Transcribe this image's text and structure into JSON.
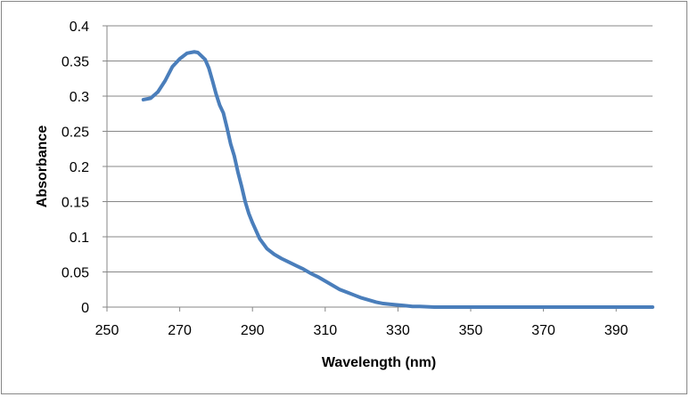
{
  "chart_data": {
    "type": "line",
    "title": "",
    "xlabel": "Wavelength (nm)",
    "ylabel": "Absorbance",
    "xlim": [
      250,
      400
    ],
    "ylim": [
      0,
      0.4
    ],
    "x_ticks": [
      250,
      270,
      290,
      310,
      330,
      350,
      370,
      390
    ],
    "y_ticks": [
      0,
      0.05,
      0.1,
      0.15,
      0.2,
      0.25,
      0.3,
      0.35,
      0.4
    ],
    "x_tick_labels": [
      "250",
      "270",
      "290",
      "310",
      "330",
      "350",
      "370",
      "390"
    ],
    "y_tick_labels": [
      "0",
      "0.05",
      "0.1",
      "0.15",
      "0.2",
      "0.25",
      "0.3",
      "0.35",
      "0.4"
    ],
    "grid": "horizontal",
    "legend": "none",
    "series_color": "#4a7ebb",
    "series": [
      {
        "x": [
          260,
          262,
          264,
          266,
          268,
          270,
          272,
          274,
          275,
          276,
          277,
          278,
          279,
          280,
          281,
          282,
          283,
          284,
          285,
          286,
          287,
          288,
          289,
          290,
          292,
          294,
          296,
          298,
          300,
          302,
          304,
          306,
          308,
          310,
          312,
          314,
          316,
          318,
          320,
          322,
          324,
          326,
          328,
          330,
          332,
          334,
          336,
          338,
          340,
          345,
          350,
          360,
          370,
          380,
          390,
          400
        ],
        "y": [
          0.295,
          0.297,
          0.306,
          0.322,
          0.342,
          0.353,
          0.361,
          0.363,
          0.362,
          0.357,
          0.352,
          0.34,
          0.322,
          0.303,
          0.287,
          0.276,
          0.255,
          0.232,
          0.215,
          0.192,
          0.172,
          0.15,
          0.133,
          0.12,
          0.097,
          0.083,
          0.075,
          0.069,
          0.064,
          0.059,
          0.054,
          0.048,
          0.043,
          0.037,
          0.031,
          0.025,
          0.021,
          0.017,
          0.013,
          0.01,
          0.007,
          0.005,
          0.004,
          0.003,
          0.002,
          0.001,
          0.001,
          0.0005,
          0.0,
          0.0,
          0.0,
          0.0,
          0.0,
          0.0,
          0.0,
          0.0
        ]
      }
    ]
  }
}
